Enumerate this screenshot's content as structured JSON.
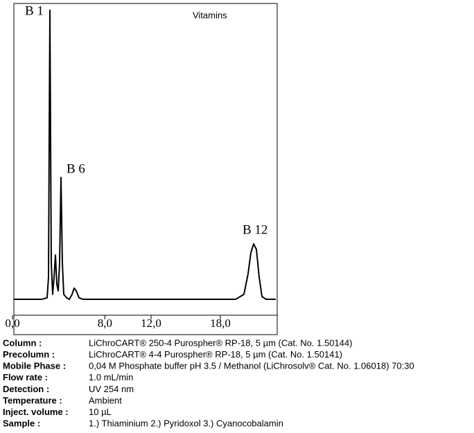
{
  "chart_data": {
    "type": "line",
    "title": "Vitamins",
    "annotations": [
      "B 1",
      "B 6",
      "B 12"
    ],
    "x": [
      0.12,
      2.52,
      3.0,
      3.12,
      3.18,
      3.24,
      3.3,
      3.36,
      3.48,
      3.6,
      3.72,
      3.84,
      3.96,
      4.08,
      4.2,
      4.32,
      4.44,
      4.68,
      4.92,
      5.16,
      5.34,
      5.52,
      5.76,
      6.12,
      19.32,
      20.04,
      20.4,
      20.64,
      20.88,
      21.12,
      21.36,
      21.6,
      21.96,
      22.8
    ],
    "series": [
      {
        "color": "#000000",
        "values": [
          5.1,
          5.1,
          5.6,
          12.2,
          56.7,
          97.8,
          56.7,
          16.7,
          6.7,
          12.2,
          19.3,
          10,
          7.8,
          16.7,
          44.2,
          16.7,
          6.7,
          5.6,
          5.1,
          6.7,
          8.7,
          7.8,
          5.6,
          5.1,
          5.1,
          6.7,
          13.3,
          20,
          22.9,
          21.1,
          12.2,
          6,
          5.1,
          5.1
        ]
      }
    ],
    "xlim": [
      0,
      22.8
    ],
    "xticks": [
      {
        "value": 0,
        "label": "0,0"
      },
      {
        "value": 8,
        "label": "8,0"
      },
      {
        "value": 12,
        "label": "12,0"
      },
      {
        "value": 18,
        "label": "18,0"
      }
    ],
    "ylim": [
      0,
      100
    ]
  },
  "table": {
    "rows": [
      [
        "Column :",
        "LiChroCART® 250-4 Purospher® RP-18, 5 µm  (Cat. No. 1.50144)"
      ],
      [
        "Precolumn :",
        "LiChroCART® 4-4 Purospher® RP-18, 5 µm  (Cat. No. 1.50141)"
      ],
      [
        "Mobile Phase :",
        "0,04 M Phosphate buffer pH 3.5 / Methanol (LiChrosolv® Cat. No. 1.06018) 70:30"
      ],
      [
        "Flow rate :",
        "1.0 mL/min"
      ],
      [
        "Detection :",
        "UV 254 nm"
      ],
      [
        "Temperature :",
        "Ambient"
      ],
      [
        "Inject. volume :",
        "10 µL"
      ],
      [
        "Sample :",
        "1.) Thiaminium 2.) Pyridoxol 3.) Cyanocobalamin"
      ]
    ]
  }
}
